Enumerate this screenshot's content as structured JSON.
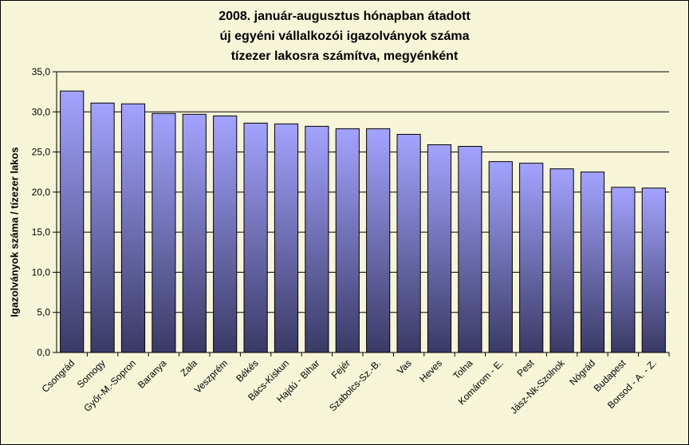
{
  "chart_data": {
    "type": "bar",
    "title_lines": [
      "2008. január-augusztus hónapban átadott",
      "új egyéni vállalkozói  igazolványok száma",
      "tízezer lakosra számítva, megyénként"
    ],
    "ylabel": "Igazolványok száma / tízezer lakos",
    "xlabel": "",
    "ylim": [
      0,
      35
    ],
    "yticks": [
      "0,0",
      "5,0",
      "10,0",
      "15,0",
      "20,0",
      "25,0",
      "30,0",
      "35,0"
    ],
    "grid": true,
    "legend": "none",
    "categories": [
      "Csongrád",
      "Somogy",
      "Győr-M.-Sopron",
      "Baranya",
      "Zala",
      "Veszprém",
      "Békés",
      "Bács-Kiskun",
      "Hajdú - Bihar",
      "Fejér",
      "Szabolcs-Sz.-B.",
      "Vas",
      "Heves",
      "Tolna",
      "Komárom - E.",
      "Pest",
      "Jász-Nk-Szolnok",
      "Nógrád",
      "Budapest",
      "Borsod - A. - Z."
    ],
    "values": [
      32.6,
      31.1,
      31.0,
      29.8,
      29.7,
      29.5,
      28.6,
      28.5,
      28.2,
      27.9,
      27.9,
      27.2,
      25.9,
      25.7,
      23.8,
      23.6,
      22.9,
      22.5,
      20.6,
      20.5
    ],
    "colors": {
      "bar_top": "#A3A3FF",
      "bar_bottom": "#3A3A66",
      "background": "#F7F5D8",
      "grid": "#000000"
    }
  }
}
